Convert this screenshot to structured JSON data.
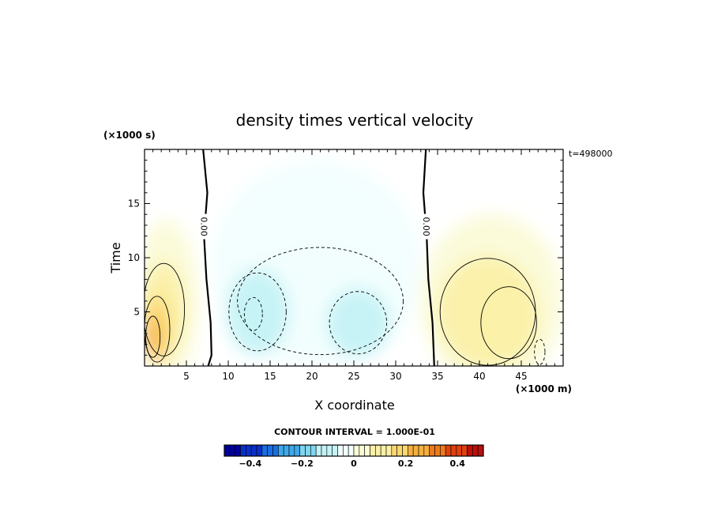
{
  "chart_data": {
    "type": "heatmap",
    "title": "density times vertical velocity",
    "xlabel": "X coordinate",
    "ylabel": "Time",
    "x_unit_label": "(×1000 m)",
    "y_unit_label": "(×1000 s)",
    "time_label": "t=498000",
    "xlim": [
      0,
      50
    ],
    "ylim": [
      0,
      20
    ],
    "x_ticks": [
      5,
      10,
      15,
      20,
      25,
      30,
      35,
      40,
      45
    ],
    "y_ticks": [
      5,
      10,
      15
    ],
    "contour_interval_label": "CONTOUR INTERVAL = 1.000E-01",
    "zero_contour_label": "0.00",
    "colorbar": {
      "range": [
        -0.5,
        0.5
      ],
      "tick_values": [
        -0.4,
        -0.2,
        0,
        0.2,
        0.4
      ],
      "tick_labels": [
        "−0.4",
        "−0.2",
        "0",
        "0.2",
        "0.4"
      ],
      "colors": [
        "#00009a",
        "#0a2fc8",
        "#1a6ee0",
        "#3fa8ea",
        "#7fd6ee",
        "#c4f2f6",
        "#f2fefe",
        "#fbfbd8",
        "#fbf0a8",
        "#fbd870",
        "#f6b040",
        "#ee7a1a",
        "#e0400e",
        "#b8100a"
      ]
    },
    "zero_contours": [
      [
        [
          7.0,
          20
        ],
        [
          7.5,
          16
        ],
        [
          7.1,
          12
        ],
        [
          7.4,
          8
        ],
        [
          7.9,
          4
        ],
        [
          8.0,
          1
        ],
        [
          7.6,
          0
        ]
      ],
      [
        [
          33.6,
          20
        ],
        [
          33.3,
          16
        ],
        [
          33.7,
          12
        ],
        [
          33.9,
          8
        ],
        [
          34.4,
          4
        ],
        [
          34.6,
          0
        ]
      ]
    ],
    "positive_regions": [
      {
        "x": 2.6,
        "y": 6.0,
        "rx": 3.8,
        "ry": 7.5,
        "value": 0.06
      },
      {
        "x": 2.3,
        "y": 5.2,
        "rx": 2.6,
        "ry": 4.5,
        "value": 0.12
      },
      {
        "x": 1.5,
        "y": 3.4,
        "rx": 1.6,
        "ry": 3.2,
        "value": 0.2
      },
      {
        "x": 1.0,
        "y": 2.7,
        "rx": 0.9,
        "ry": 2.0,
        "value": 0.26
      },
      {
        "x": 41.5,
        "y": 6.0,
        "rx": 8.5,
        "ry": 8.0,
        "value": 0.06
      },
      {
        "x": 41.0,
        "y": 5.0,
        "rx": 6.0,
        "ry": 5.2,
        "value": 0.1
      },
      {
        "x": 43.5,
        "y": 4.0,
        "rx": 3.5,
        "ry": 3.5,
        "value": 0.14
      }
    ],
    "negative_regions": [
      {
        "x": 20.5,
        "y": 9.5,
        "rx": 12.5,
        "ry": 9.5,
        "value": -0.03
      },
      {
        "x": 21.0,
        "y": 6.0,
        "rx": 11.0,
        "ry": 5.5,
        "value": -0.06
      },
      {
        "x": 13.5,
        "y": 5.0,
        "rx": 3.8,
        "ry": 4.0,
        "value": -0.1
      },
      {
        "x": 25.5,
        "y": 4.0,
        "rx": 3.8,
        "ry": 3.2,
        "value": -0.1
      },
      {
        "x": 13.0,
        "y": 4.8,
        "rx": 1.2,
        "ry": 1.7,
        "value": -0.14
      },
      {
        "x": 47.2,
        "y": 1.3,
        "rx": 0.7,
        "ry": 1.3,
        "value": -0.08
      }
    ]
  }
}
